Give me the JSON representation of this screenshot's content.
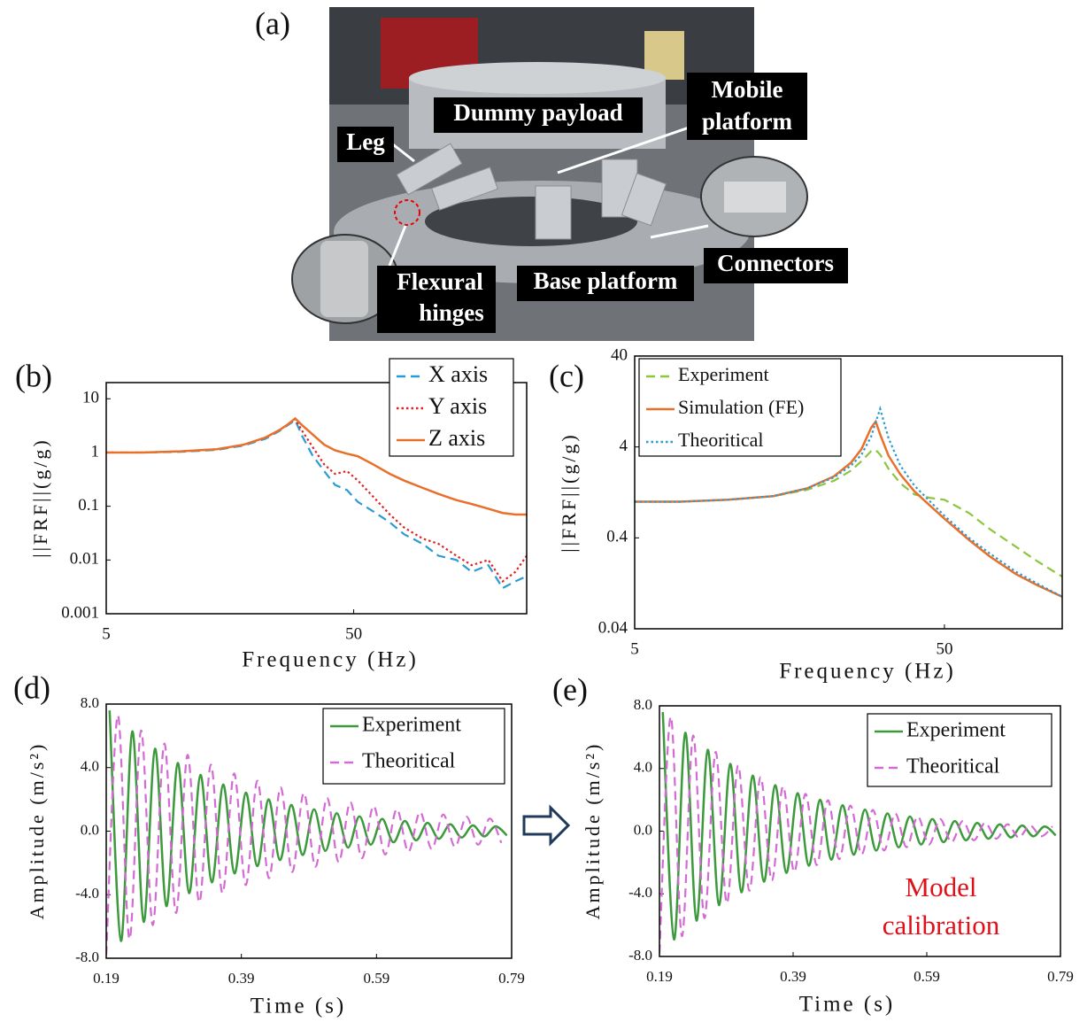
{
  "photo": {
    "panel_label": "(a)",
    "labels": [
      [
        "Dummy payload"
      ],
      [
        "Mobile",
        "platform"
      ],
      [
        "Leg"
      ],
      [
        "Connectors"
      ],
      [
        "Base platform"
      ],
      [
        "Flexural",
        "hinges"
      ]
    ]
  },
  "chart_data": [
    {
      "type": "line",
      "panel_label": "(b)",
      "x_label": "Frequency (Hz)",
      "y_label": "||FRF||(g/g)",
      "xlog": true,
      "ylog": true,
      "x": [
        5,
        7,
        10,
        14,
        18,
        22,
        25,
        27,
        29,
        31,
        34,
        38,
        42,
        47,
        52,
        60,
        70,
        80,
        95,
        110,
        130,
        150,
        175,
        200,
        225,
        250
      ],
      "series": [
        {
          "name": "X axis",
          "color": "#2b9bd3",
          "style": "dashed",
          "values": [
            1,
            1,
            1.03,
            1.12,
            1.35,
            1.8,
            2.5,
            3.2,
            4.0,
            2.0,
            0.9,
            0.45,
            0.25,
            0.2,
            0.12,
            0.08,
            0.05,
            0.03,
            0.02,
            0.012,
            0.01,
            0.006,
            0.008,
            0.003,
            0.004,
            0.005
          ]
        },
        {
          "name": "Y axis",
          "color": "#e02424",
          "style": "dotted",
          "values": [
            1,
            1,
            1.05,
            1.15,
            1.4,
            1.9,
            2.6,
            3.3,
            4.2,
            2.5,
            1.3,
            0.6,
            0.4,
            0.45,
            0.3,
            0.15,
            0.07,
            0.04,
            0.025,
            0.02,
            0.012,
            0.008,
            0.01,
            0.004,
            0.006,
            0.012
          ]
        },
        {
          "name": "Z axis",
          "color": "#e8702a",
          "style": "solid",
          "values": [
            1,
            1,
            1.05,
            1.15,
            1.4,
            1.9,
            2.6,
            3.3,
            4.3,
            3.2,
            2.2,
            1.4,
            1.1,
            0.95,
            0.85,
            0.6,
            0.4,
            0.3,
            0.22,
            0.17,
            0.13,
            0.11,
            0.09,
            0.075,
            0.07,
            0.07
          ]
        }
      ],
      "xlim": [
        5,
        250
      ],
      "xticks": [
        5,
        50
      ],
      "ylim": [
        0.001,
        20
      ],
      "yticks": [
        0.001,
        0.01,
        0.1,
        1,
        10
      ],
      "legend": "upper right"
    },
    {
      "type": "line",
      "panel_label": "(c)",
      "x_label": "Frequency (Hz)",
      "y_label": "||FRF||(g/g)",
      "xlog": true,
      "ylog": true,
      "x": [
        5,
        7,
        10,
        14,
        18,
        22,
        25,
        27,
        29,
        30,
        31,
        33,
        36,
        40,
        45,
        50,
        60,
        70,
        85,
        100,
        120
      ],
      "series": [
        {
          "name": "Experiment",
          "color": "#8cc63f",
          "style": "dashed",
          "values": [
            1,
            1,
            1.05,
            1.15,
            1.35,
            1.7,
            2.2,
            2.8,
            3.6,
            3.7,
            3.3,
            2.3,
            1.6,
            1.2,
            1.1,
            1.05,
            0.75,
            0.5,
            0.32,
            0.22,
            0.15
          ]
        },
        {
          "name": "Simulation (FE)",
          "color": "#e8702a",
          "style": "solid",
          "values": [
            1,
            1,
            1.05,
            1.15,
            1.4,
            1.9,
            2.7,
            3.8,
            6.5,
            7.6,
            5.5,
            3.2,
            2.0,
            1.3,
            0.9,
            0.65,
            0.38,
            0.25,
            0.16,
            0.12,
            0.09
          ]
        },
        {
          "name": "Theoritical",
          "color": "#2b9bd3",
          "style": "dotted",
          "values": [
            1,
            1,
            1.05,
            1.15,
            1.4,
            1.85,
            2.5,
            3.3,
            5.2,
            7.5,
            10.5,
            5.0,
            2.5,
            1.5,
            1.0,
            0.7,
            0.4,
            0.27,
            0.17,
            0.125,
            0.09
          ]
        }
      ],
      "xlim": [
        5,
        120
      ],
      "xticks": [
        5,
        50
      ],
      "ylim": [
        0.04,
        40
      ],
      "yticks": [
        0.04,
        0.4,
        4,
        40
      ],
      "legend": "upper left"
    },
    {
      "type": "line",
      "panel_label": "(d)",
      "x_label": "Time (s)",
      "y_label": "Amplitude (m/s²)",
      "series": [
        {
          "name": "Experiment",
          "color": "#3c9a3c",
          "style": "solid",
          "x": [
            0.195,
            0.2118,
            0.2286,
            0.2454,
            0.2622,
            0.279,
            0.2958,
            0.3126,
            0.3294,
            0.3462,
            0.363,
            0.3798,
            0.3966,
            0.4134,
            0.4302,
            0.447,
            0.4638,
            0.4806,
            0.4974,
            0.5142,
            0.531,
            0.5478,
            0.5646,
            0.5814,
            0.5982,
            0.615,
            0.6318,
            0.6486,
            0.6654,
            0.6822,
            0.699,
            0.7158,
            0.7326,
            0.7494,
            0.7662,
            0.783
          ],
          "values": [
            7.6,
            -6.91,
            6.28,
            -5.71,
            5.19,
            -4.72,
            4.29,
            -3.9,
            3.54,
            -3.22,
            2.93,
            -2.66,
            2.42,
            -2.2,
            2,
            -1.82,
            1.65,
            -1.5,
            1.37,
            -1.24,
            1.13,
            -1.03,
            0.93,
            -0.85,
            0.77,
            -0.7,
            0.64,
            -0.58,
            0.52,
            -0.48,
            0.43,
            -0.4,
            0.36,
            -0.33,
            0.3,
            -0.27
          ]
        },
        {
          "name": "Theoritical",
          "color": "#d46ad4",
          "style": "dashed",
          "x": [
            0.19,
            0.2072,
            0.2244,
            0.2416,
            0.2588,
            0.276,
            0.2932,
            0.3104,
            0.3276,
            0.3448,
            0.362,
            0.3792,
            0.3964,
            0.4136,
            0.4308,
            0.448,
            0.4652,
            0.4824,
            0.4996,
            0.5168,
            0.534,
            0.5512,
            0.5684,
            0.5856,
            0.6028,
            0.62,
            0.6372,
            0.6544,
            0.6716,
            0.6888,
            0.706,
            0.7232,
            0.7404,
            0.7576,
            0.7748
          ],
          "values": [
            -7.8,
            7.28,
            -6.79,
            6.33,
            -5.91,
            5.51,
            -5.15,
            4.8,
            -4.48,
            4.18,
            -3.9,
            3.63,
            -3.39,
            3.17,
            -2.96,
            2.75,
            -2.57,
            2.4,
            -2.24,
            2.09,
            -1.95,
            1.82,
            -1.7,
            1.58,
            -1.47,
            1.38,
            -1.29,
            1.2,
            -1.12,
            1.05,
            -0.98,
            0.91,
            -0.85,
            0.79,
            -0.74
          ]
        }
      ],
      "xlim": [
        0.19,
        0.79
      ],
      "xticks": [
        0.19,
        0.39,
        0.59,
        0.79
      ],
      "ylim": [
        -8,
        8
      ],
      "yticks": [
        {
          "value": -8,
          "label": "-8.0"
        },
        {
          "value": -4,
          "label": "-4.0"
        },
        {
          "value": 0,
          "label": "0.0"
        },
        {
          "value": 4,
          "label": "4.0"
        },
        {
          "value": 8,
          "label": "8.0"
        }
      ],
      "legend": "upper right"
    },
    {
      "type": "line",
      "panel_label": "(e)",
      "x_label": "Time (s)",
      "y_label": "Amplitude (m/s²)",
      "annotation": [
        "Model",
        "calibration"
      ],
      "series": [
        {
          "name": "Experiment",
          "color": "#3c9a3c",
          "style": "solid",
          "x": [
            0.195,
            0.2118,
            0.2286,
            0.2454,
            0.2622,
            0.279,
            0.2958,
            0.3126,
            0.3294,
            0.3462,
            0.363,
            0.3798,
            0.3966,
            0.4134,
            0.4302,
            0.447,
            0.4638,
            0.4806,
            0.4974,
            0.5142,
            0.531,
            0.5478,
            0.5646,
            0.5814,
            0.5982,
            0.615,
            0.6318,
            0.6486,
            0.6654,
            0.6822,
            0.699,
            0.7158,
            0.7326,
            0.7494,
            0.7662,
            0.783
          ],
          "values": [
            7.6,
            -6.91,
            6.28,
            -5.71,
            5.19,
            -4.72,
            4.29,
            -3.9,
            3.54,
            -3.22,
            2.93,
            -2.66,
            2.42,
            -2.2,
            2,
            -1.82,
            1.65,
            -1.5,
            1.37,
            -1.24,
            1.13,
            -1.03,
            0.93,
            -0.85,
            0.77,
            -0.7,
            0.64,
            -0.58,
            0.52,
            -0.48,
            0.43,
            -0.4,
            0.36,
            -0.33,
            0.3,
            -0.27
          ]
        },
        {
          "name": "Theoritical",
          "color": "#d46ad4",
          "style": "dashed",
          "x": [
            0.19,
            0.2068,
            0.2236,
            0.2404,
            0.2572,
            0.274,
            0.2908,
            0.3076,
            0.3244,
            0.3412,
            0.358,
            0.3748,
            0.3916,
            0.4084,
            0.4252,
            0.442,
            0.4588,
            0.4756,
            0.4924,
            0.5092,
            0.526,
            0.5428,
            0.5596,
            0.5764,
            0.5932,
            0.61,
            0.6268,
            0.6436,
            0.6604,
            0.6772,
            0.694,
            0.7108,
            0.7276,
            0.7444,
            0.7612,
            0.778
          ],
          "values": [
            -7.8,
            7.3,
            -6.7,
            6.1,
            -5.55,
            5.05,
            -4.6,
            4.2,
            -3.8,
            3.45,
            -3.15,
            2.85,
            -2.6,
            2.38,
            -2.16,
            1.97,
            -1.79,
            1.63,
            -1.48,
            1.35,
            -1.23,
            1.12,
            -1.02,
            0.93,
            -0.85,
            0.77,
            -0.7,
            0.64,
            -0.58,
            0.53,
            -0.48,
            0.44,
            -0.4,
            0.36,
            -0.33,
            0.3
          ]
        }
      ],
      "xlim": [
        0.19,
        0.79
      ],
      "xticks": [
        0.19,
        0.39,
        0.59,
        0.79
      ],
      "ylim": [
        -8,
        8
      ],
      "yticks": [
        {
          "value": -8,
          "label": "-8.0"
        },
        {
          "value": -4,
          "label": "-4.0"
        },
        {
          "value": 0,
          "label": "0.0"
        },
        {
          "value": 4,
          "label": "4.0"
        },
        {
          "value": 8,
          "label": "8.0"
        }
      ],
      "legend": "upper right"
    }
  ]
}
